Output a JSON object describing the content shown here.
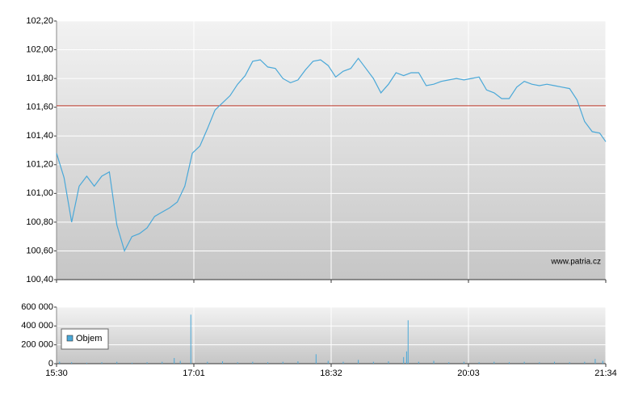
{
  "chart_data": [
    {
      "type": "line",
      "xlim": [
        930,
        1294
      ],
      "ylim": [
        100.4,
        102.2
      ],
      "yticks": [
        {
          "value": 100.4,
          "label": "100,40"
        },
        {
          "value": 100.6,
          "label": "100,60"
        },
        {
          "value": 100.8,
          "label": "100,80"
        },
        {
          "value": 101.0,
          "label": "101,00"
        },
        {
          "value": 101.2,
          "label": "101,20"
        },
        {
          "value": 101.4,
          "label": "101,40"
        },
        {
          "value": 101.6,
          "label": "101,60"
        },
        {
          "value": 101.8,
          "label": "101,80"
        },
        {
          "value": 102.0,
          "label": "102,00"
        },
        {
          "value": 102.2,
          "label": "102,20"
        }
      ],
      "grid": true,
      "color": "#4aa8d8",
      "reference_line": {
        "value": 101.61,
        "color": "#c0392b"
      },
      "annotation": "www.patria.cz",
      "x": [
        930,
        935,
        940,
        945,
        950,
        955,
        960,
        965,
        970,
        975,
        980,
        985,
        990,
        995,
        1000,
        1005,
        1010,
        1015,
        1020,
        1025,
        1030,
        1035,
        1040,
        1045,
        1050,
        1055,
        1060,
        1065,
        1070,
        1075,
        1080,
        1085,
        1090,
        1095,
        1100,
        1105,
        1110,
        1115,
        1120,
        1125,
        1130,
        1135,
        1140,
        1145,
        1150,
        1155,
        1160,
        1165,
        1170,
        1175,
        1180,
        1185,
        1190,
        1195,
        1200,
        1205,
        1210,
        1215,
        1220,
        1225,
        1230,
        1235,
        1240,
        1245,
        1250,
        1255,
        1260,
        1265,
        1270,
        1275,
        1280,
        1285,
        1290,
        1294
      ],
      "values": [
        101.28,
        101.11,
        100.8,
        101.05,
        101.12,
        101.05,
        101.12,
        101.15,
        100.78,
        100.6,
        100.7,
        100.72,
        100.76,
        100.84,
        100.87,
        100.9,
        100.94,
        101.05,
        101.28,
        101.33,
        101.45,
        101.58,
        101.63,
        101.68,
        101.76,
        101.82,
        101.92,
        101.93,
        101.88,
        101.87,
        101.8,
        101.77,
        101.79,
        101.86,
        101.92,
        101.93,
        101.89,
        101.81,
        101.85,
        101.87,
        101.94,
        101.87,
        101.8,
        101.7,
        101.76,
        101.84,
        101.82,
        101.84,
        101.84,
        101.75,
        101.76,
        101.78,
        101.79,
        101.8,
        101.79,
        101.8,
        101.81,
        101.72,
        101.7,
        101.66,
        101.66,
        101.74,
        101.78,
        101.76,
        101.75,
        101.76,
        101.75,
        101.74,
        101.73,
        101.65,
        101.5,
        101.43,
        101.42,
        101.36
      ]
    },
    {
      "type": "bar",
      "xlim": [
        930,
        1294
      ],
      "xticks": [
        {
          "value": 930,
          "label": "15:30"
        },
        {
          "value": 1021,
          "label": "17:01"
        },
        {
          "value": 1112,
          "label": "18:32"
        },
        {
          "value": 1203,
          "label": "20:03"
        },
        {
          "value": 1294,
          "label": "21:34"
        }
      ],
      "ylim": [
        0,
        600000
      ],
      "yticks": [
        0,
        {
          "value": 200000,
          "label": "200 000"
        },
        {
          "value": 400000,
          "label": "400 000"
        },
        {
          "value": 600000,
          "label": "600 000"
        }
      ],
      "grid": true,
      "legend": "upper left",
      "series": [
        {
          "name": "Objem",
          "color": "#4aa8d8",
          "x": [
            932,
            940,
            950,
            960,
            970,
            980,
            990,
            1000,
            1008,
            1012,
            1019,
            1030,
            1040,
            1050,
            1060,
            1070,
            1080,
            1090,
            1102,
            1110,
            1120,
            1130,
            1140,
            1150,
            1160,
            1162,
            1163,
            1170,
            1180,
            1190,
            1200,
            1210,
            1220,
            1230,
            1240,
            1250,
            1260,
            1270,
            1280,
            1287,
            1292
          ],
          "values": [
            20000,
            15000,
            10000,
            15000,
            20000,
            10000,
            15000,
            20000,
            60000,
            30000,
            520000,
            20000,
            25000,
            15000,
            20000,
            15000,
            20000,
            25000,
            100000,
            30000,
            20000,
            40000,
            20000,
            25000,
            70000,
            130000,
            460000,
            20000,
            30000,
            15000,
            20000,
            15000,
            20000,
            15000,
            20000,
            15000,
            20000,
            15000,
            20000,
            50000,
            30000
          ]
        }
      ]
    }
  ]
}
